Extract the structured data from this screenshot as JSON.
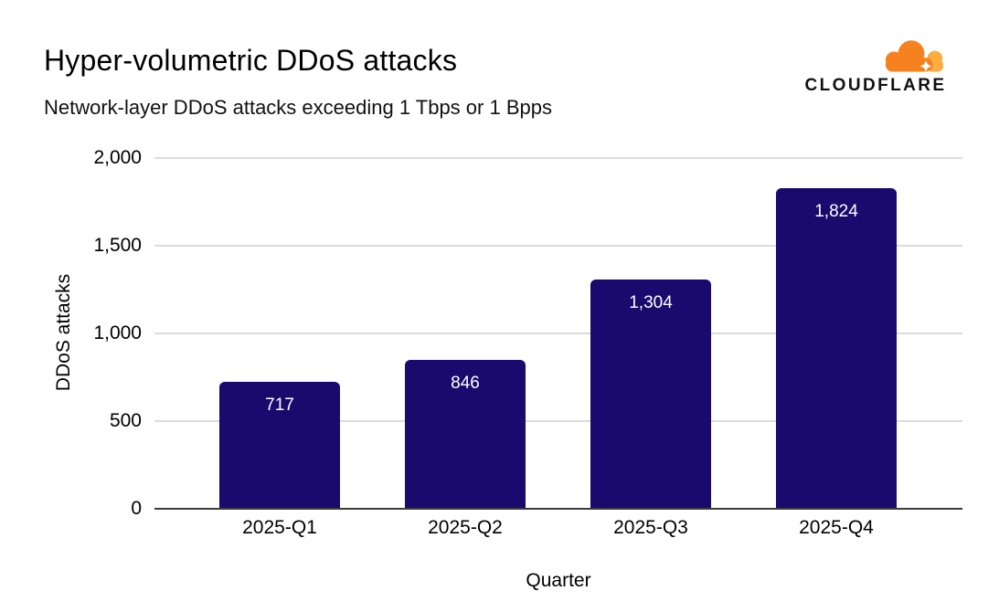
{
  "header": {
    "title": "Hyper-volumetric DDoS attacks",
    "subtitle": "Network-layer DDoS attacks exceeding 1 Tbps or 1 Bpps"
  },
  "logo": {
    "wordmark": "CLOUDFLARE",
    "icon": "cloudflare-cloud",
    "colors": {
      "cloud_front": "#f6821f",
      "cloud_back": "#fbad41",
      "wordmark": "#111111"
    }
  },
  "chart_data": {
    "type": "bar",
    "title": "Hyper-volumetric DDoS attacks",
    "subtitle": "Network-layer DDoS attacks exceeding 1 Tbps or 1 Bpps",
    "categories": [
      "2025-Q1",
      "2025-Q2",
      "2025-Q3",
      "2025-Q4"
    ],
    "values": [
      717,
      846,
      1304,
      1824
    ],
    "xlabel": "Quarter",
    "ylabel": "DDoS attacks",
    "ylim": [
      0,
      2000
    ],
    "yticks": [
      0,
      500,
      1000,
      1500,
      2000
    ],
    "grid": true,
    "legend": false,
    "bar_labels_inside_top": true,
    "colors": {
      "bar": "#1a0a6e",
      "bar_label": "#ffffff",
      "gridline": "#dadce0",
      "axis_line": "#3c3c3c"
    }
  }
}
